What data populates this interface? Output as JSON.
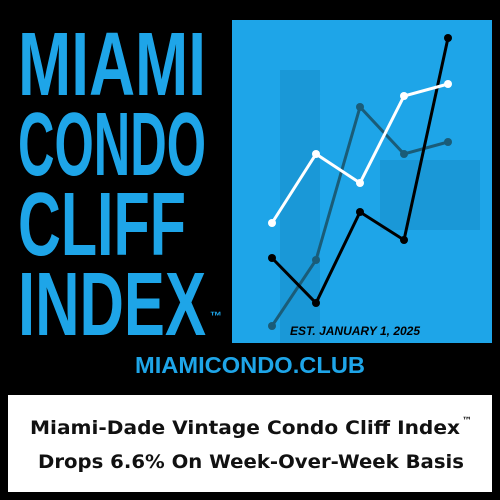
{
  "logo": {
    "lines": [
      "MIAMI",
      "CONDO",
      "CLIFF",
      "INDEX"
    ],
    "trademark": "™"
  },
  "panel": {
    "established": "EST. JANUARY 1, 2025"
  },
  "website": "MIAMICONDO.CLUB",
  "headline": {
    "line1": "Miami-Dade Vintage Condo Cliff Index",
    "trademark": "™",
    "line2": "Drops 6.6% On Week-Over-Week Basis"
  }
}
